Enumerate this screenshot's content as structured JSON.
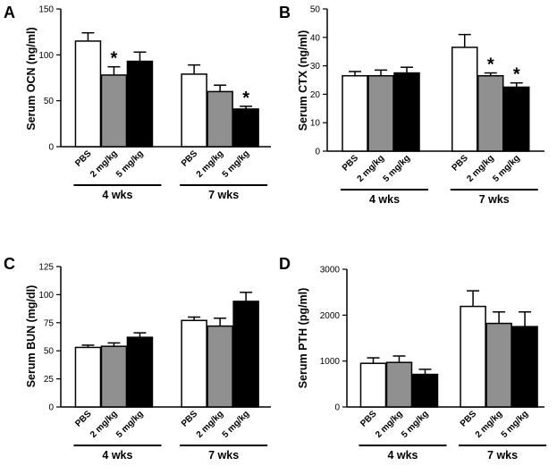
{
  "series_colors": {
    "PBS": "#ffffff",
    "2 mg/kg": "#909090",
    "5 mg/kg": "#000000"
  },
  "chart_data": [
    {
      "panel": "A",
      "type": "bar",
      "ylabel": "Serum OCN (ng/ml)",
      "ylim": [
        0,
        150
      ],
      "yticks": [
        0,
        50,
        100,
        150
      ],
      "ytick_labels": [
        "0",
        "50",
        "100",
        "150"
      ],
      "groups": [
        "4 wks",
        "7 wks"
      ],
      "categories": [
        "PBS",
        "2 mg/kg",
        "5 mg/kg"
      ],
      "values": [
        [
          115,
          78,
          93
        ],
        [
          79,
          60,
          41
        ]
      ],
      "errors": [
        [
          9,
          9,
          10
        ],
        [
          10,
          7,
          3
        ]
      ],
      "significant": [
        [
          false,
          true,
          false
        ],
        [
          false,
          false,
          true
        ]
      ],
      "significance_marker": "*"
    },
    {
      "panel": "B",
      "type": "bar",
      "ylabel": "Serum CTX (ng/ml)",
      "ylim": [
        0,
        50
      ],
      "yticks": [
        0,
        10,
        20,
        30,
        40,
        50
      ],
      "ytick_labels": [
        "0",
        "10",
        "20",
        "30",
        "40",
        "50"
      ],
      "groups": [
        "4 wks",
        "7 wks"
      ],
      "categories": [
        "PBS",
        "2 mg/kg",
        "5 mg/kg"
      ],
      "values": [
        [
          26.5,
          26.5,
          27.5
        ],
        [
          36.5,
          26.5,
          22.5
        ]
      ],
      "errors": [
        [
          1.5,
          2,
          2
        ],
        [
          4.5,
          1,
          1.5
        ]
      ],
      "significant": [
        [
          false,
          false,
          false
        ],
        [
          false,
          true,
          true
        ]
      ],
      "significance_marker": "*"
    },
    {
      "panel": "C",
      "type": "bar",
      "ylabel": "Serum BUN (mg/dl)",
      "ylim": [
        0,
        125
      ],
      "yticks": [
        0,
        25,
        50,
        75,
        100,
        125
      ],
      "ytick_labels": [
        "0",
        "25",
        "50",
        "75",
        "100",
        "125"
      ],
      "groups": [
        "4 wks",
        "7 wks"
      ],
      "categories": [
        "PBS",
        "2 mg/kg",
        "5 mg/kg"
      ],
      "values": [
        [
          53,
          54,
          62
        ],
        [
          77,
          72,
          94
        ]
      ],
      "errors": [
        [
          2,
          3,
          4
        ],
        [
          3,
          7,
          8
        ]
      ],
      "significant": [
        [
          false,
          false,
          false
        ],
        [
          false,
          false,
          false
        ]
      ],
      "significance_marker": "*"
    },
    {
      "panel": "D",
      "type": "bar",
      "ylabel": "Serum PTH (pg/ml)",
      "ylim": [
        0,
        3000
      ],
      "yticks": [
        0,
        1000,
        2000,
        3000
      ],
      "ytick_labels": [
        "0",
        "1000",
        "2000",
        "3000"
      ],
      "groups": [
        "4 wks",
        "7 wks"
      ],
      "categories": [
        "PBS",
        "2 mg/kg",
        "5 mg/kg"
      ],
      "values": [
        [
          950,
          970,
          710
        ],
        [
          2190,
          1820,
          1750
        ]
      ],
      "errors": [
        [
          120,
          140,
          110
        ],
        [
          340,
          250,
          320
        ]
      ],
      "significant": [
        [
          false,
          false,
          false
        ],
        [
          false,
          false,
          false
        ]
      ],
      "significance_marker": "*"
    }
  ]
}
